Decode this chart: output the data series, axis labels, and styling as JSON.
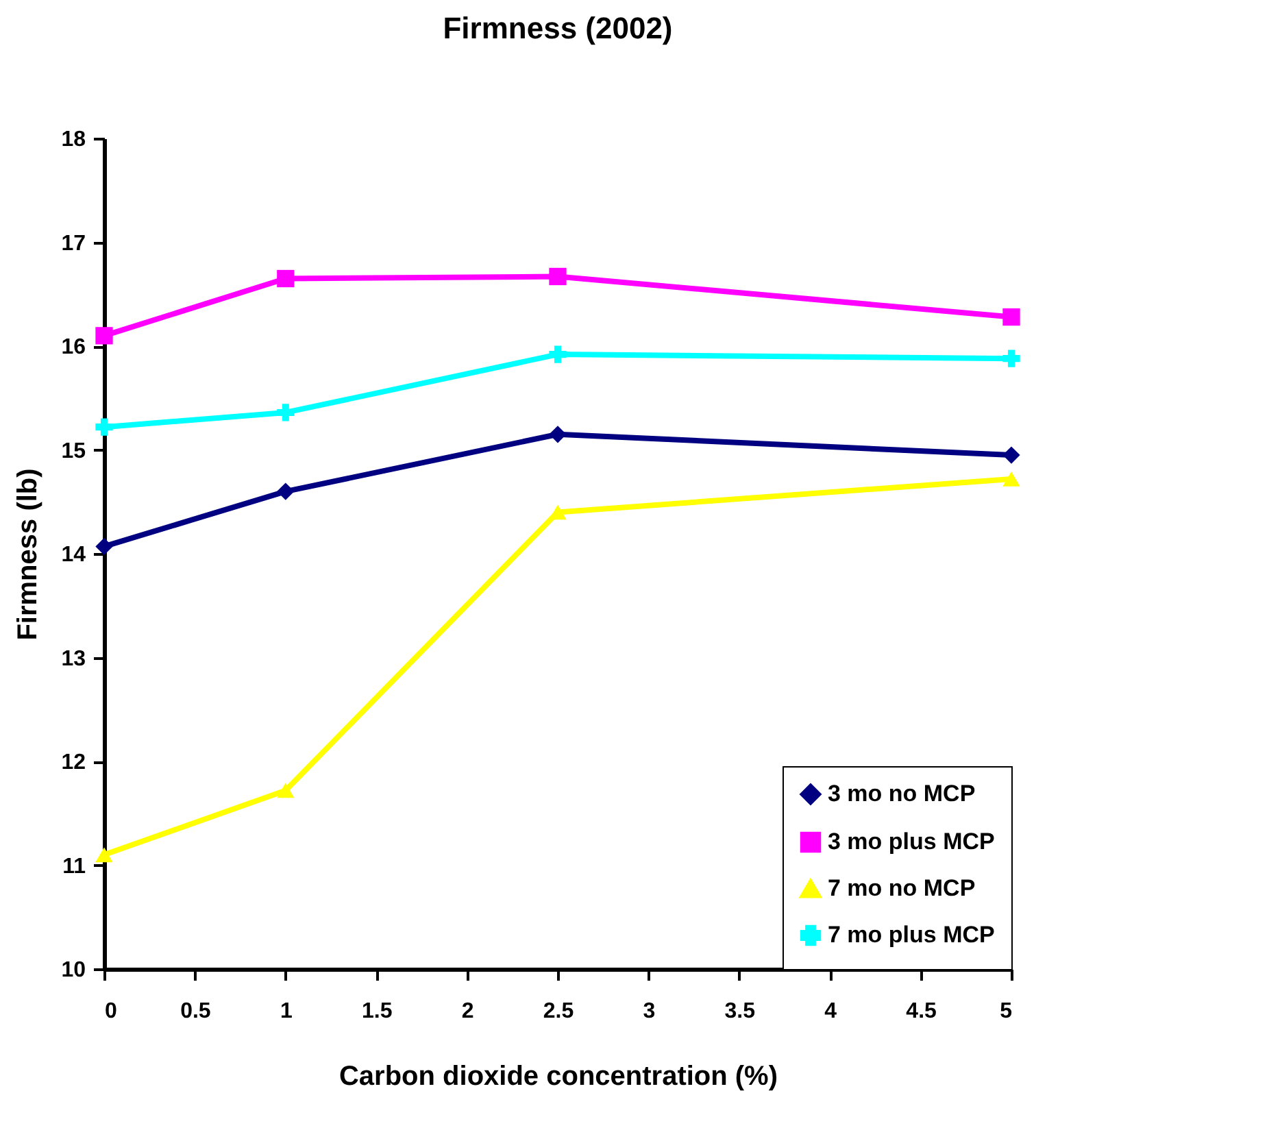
{
  "chart_data": {
    "type": "line",
    "title": "Firmness (2002)",
    "xlabel": "Carbon dioxide concentration (%)",
    "ylabel": "Firmness (lb)",
    "x": [
      0,
      1,
      2.5,
      5
    ],
    "series": [
      {
        "name": "3 mo no MCP",
        "color": "#000080",
        "marker": "diamond",
        "values": [
          14.07,
          14.6,
          15.15,
          14.95
        ]
      },
      {
        "name": "3 mo plus MCP",
        "color": "#ff00ff",
        "marker": "square",
        "values": [
          16.1,
          16.65,
          16.67,
          16.28
        ]
      },
      {
        "name": "7 mo no MCP",
        "color": "#ffff00",
        "marker": "triangle",
        "values": [
          11.1,
          11.72,
          14.4,
          14.72
        ]
      },
      {
        "name": "7 mo plus MCP",
        "color": "#00ffff",
        "marker": "cross",
        "values": [
          15.22,
          15.36,
          15.92,
          15.88
        ]
      }
    ],
    "xlim": [
      0,
      5
    ],
    "xticks": [
      0,
      0.5,
      1,
      1.5,
      2,
      2.5,
      3,
      3.5,
      4,
      4.5,
      5
    ],
    "ylim": [
      10,
      18
    ],
    "yticks": [
      10,
      11,
      12,
      13,
      14,
      15,
      16,
      17,
      18
    ],
    "grid": false,
    "legend": "bottom right",
    "line_style": "solid"
  }
}
